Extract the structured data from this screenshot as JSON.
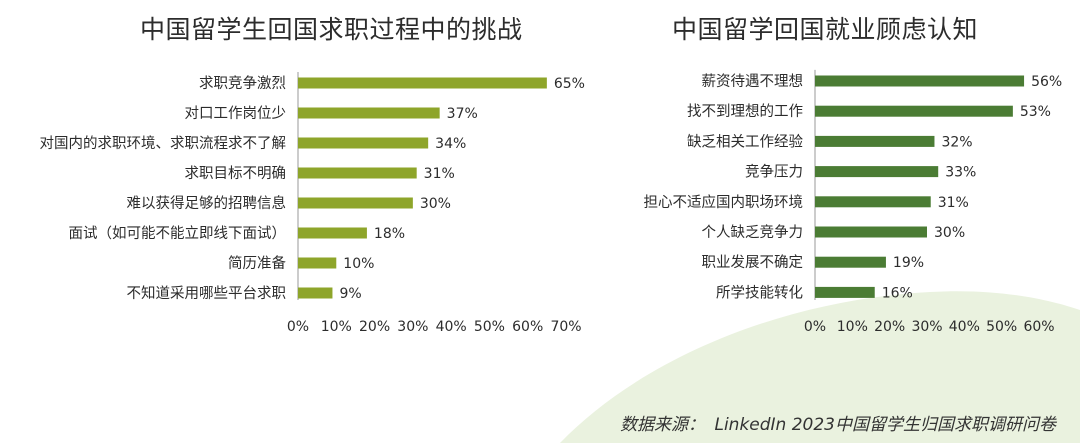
{
  "colors": {
    "left_bar": "#8ea52a",
    "right_bar": "#4b7c34",
    "blob": "#eaf2df",
    "axis": "#999999",
    "text": "#2c2c2c"
  },
  "chart_data": [
    {
      "type": "bar",
      "orientation": "horizontal",
      "title": "中国留学生回国求职过程中的挑战",
      "categories": [
        "求职竞争激烈",
        "对口工作岗位少",
        "对国内的求职环境、求职流程求不了解",
        "求职目标不明确",
        "难以获得足够的招聘信息",
        "面试（如可能不能立即线下面试）",
        "简历准备",
        "不知道采用哪些平台求职"
      ],
      "values": [
        65,
        37,
        34,
        31,
        30,
        18,
        10,
        9
      ],
      "value_labels": [
        "65%",
        "37%",
        "34%",
        "31%",
        "30%",
        "18%",
        "10%",
        "9%"
      ],
      "xlim": [
        0,
        70
      ],
      "ticks": [
        "0%",
        "10%",
        "20%",
        "30%",
        "40%",
        "50%",
        "60%",
        "70%"
      ],
      "grid": false,
      "legend": "none"
    },
    {
      "type": "bar",
      "orientation": "horizontal",
      "title": "中国留学回国就业顾虑认知",
      "categories": [
        "薪资待遇不理想",
        "找不到理想的工作",
        "缺乏相关工作经验",
        "竞争压力",
        "担心不适应国内职场环境",
        "个人缺乏竞争力",
        "职业发展不确定",
        "所学技能转化"
      ],
      "values": [
        56,
        53,
        32,
        33,
        31,
        30,
        19,
        16
      ],
      "value_labels": [
        "56%",
        "53%",
        "32%",
        "33%",
        "31%",
        "30%",
        "19%",
        "16%"
      ],
      "xlim": [
        0,
        60
      ],
      "ticks": [
        "0%",
        "10%",
        "20%",
        "30%",
        "40%",
        "50%",
        "60%"
      ],
      "grid": false,
      "legend": "none"
    }
  ],
  "source": {
    "label": "数据来源：",
    "text": "LinkedIn 2023中国留学生归国求职调研问卷"
  }
}
